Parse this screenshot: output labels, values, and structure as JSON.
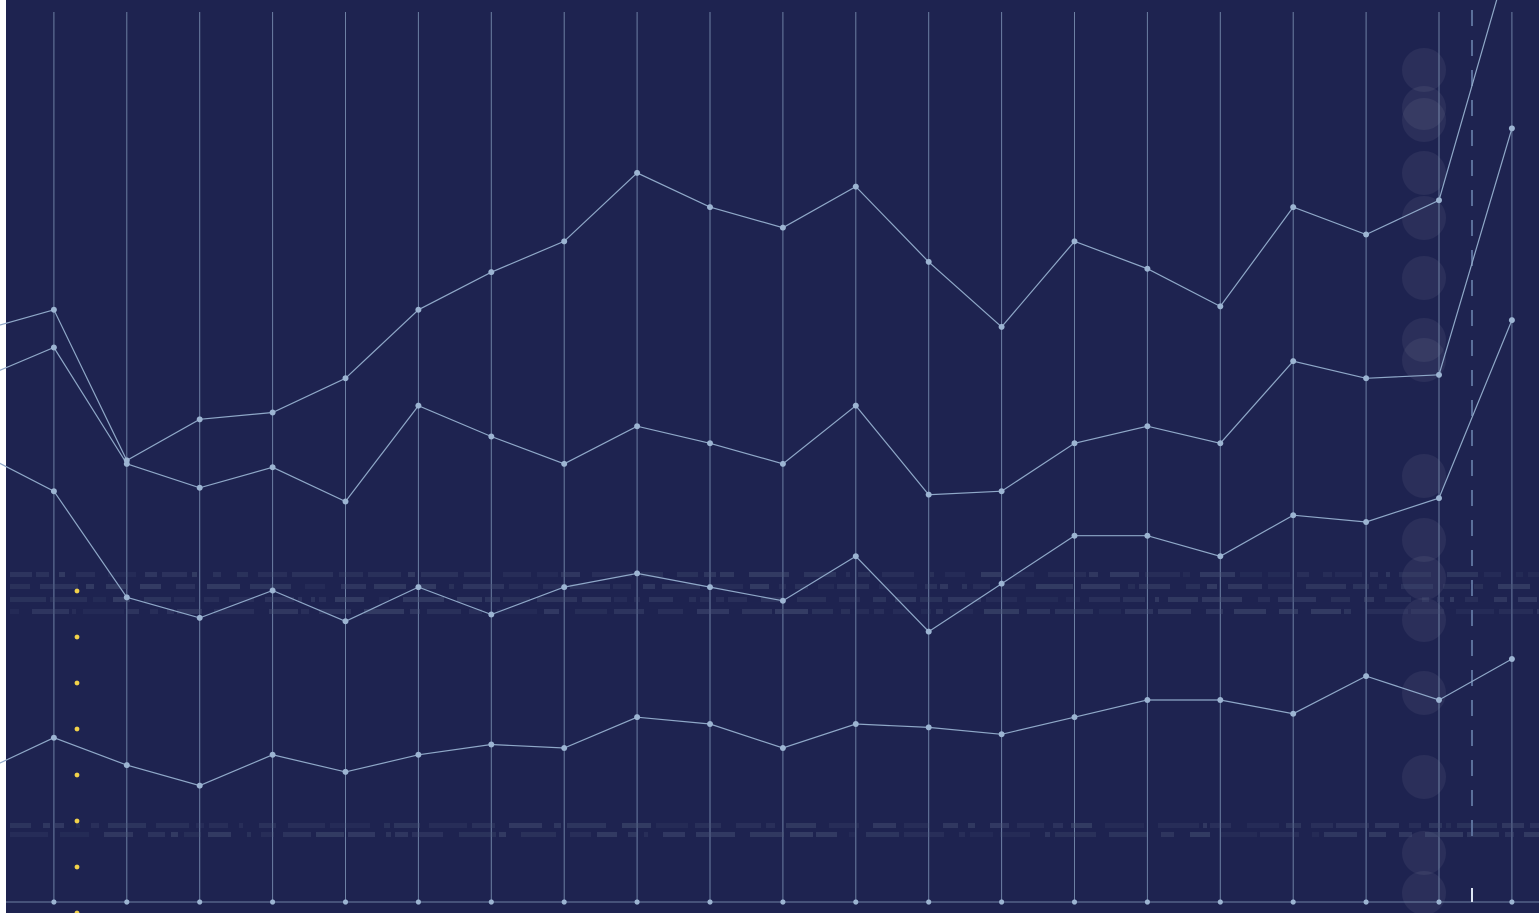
{
  "chart_data": {
    "type": "line",
    "x": [
      0,
      1,
      2,
      3,
      4,
      5,
      6,
      7,
      8,
      9,
      10,
      11,
      12,
      13,
      14,
      15,
      16,
      17,
      18,
      19,
      20,
      21
    ],
    "series": [
      {
        "values": [
          38,
          48,
          40,
          34,
          43,
          38,
          43,
          46,
          45,
          54,
          52,
          45,
          52,
          51,
          49,
          54,
          59,
          59,
          55,
          66,
          59,
          71
        ]
      },
      {
        "values": [
          93,
          72,
          49,
          49,
          48,
          44,
          49,
          38,
          47,
          42,
          40,
          43,
          49,
          28,
          44,
          53,
          48,
          42,
          58,
          45,
          59,
          99
        ]
      },
      {
        "values": [
          22,
          42,
          39,
          38,
          36,
          35,
          53,
          52,
          36,
          43,
          42,
          40,
          44,
          40,
          27,
          27,
          32,
          33,
          45,
          42,
          36,
          56
        ]
      },
      {
        "values": [
          14,
          11,
          1,
          20,
          16,
          36,
          28,
          48,
          65,
          74,
          69,
          69,
          64,
          68,
          48,
          59,
          46,
          40,
          45,
          42,
          51,
          53
        ]
      }
    ],
    "ylim": [
      0,
      260
    ],
    "grid": true,
    "colors": {
      "background": "#1e2350",
      "line": "#8fa8c8",
      "point": "#9cb4d2",
      "grid": "#8fa8c8",
      "highlight": "#f2d24a",
      "dashed": "#5a6f9a",
      "muted": "#4a5578"
    }
  }
}
